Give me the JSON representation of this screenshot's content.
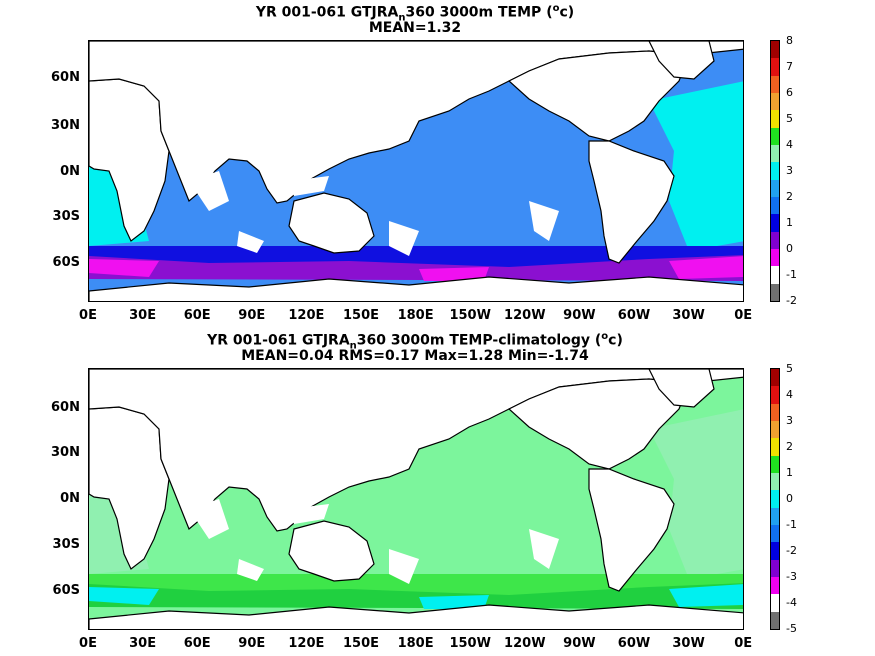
{
  "panels": [
    {
      "title_pre": "YR 001-061 GTJRA",
      "title_sub": "n",
      "title_post": "360 3000m TEMP (",
      "title_sup": "o",
      "title_end": "c)",
      "stats": "MEAN=1.32",
      "colorbar": {
        "labels": [
          "8",
          "7",
          "6",
          "5",
          "4",
          "3",
          "2",
          "1",
          "0",
          "-1",
          "-2"
        ],
        "colors": [
          "#a00000",
          "#e01010",
          "#f06020",
          "#f0a030",
          "#f0e000",
          "#20e020",
          "#90f0b0",
          "#00f0f0",
          "#20a0f0",
          "#1070f0",
          "#0000e0",
          "#8000d0",
          "#f000f0",
          "#ffffff",
          "#707070"
        ]
      },
      "region_colors": {
        "ocean_main": "#3d8df5",
        "atlantic": "#00f0f0",
        "southern_band": "#1010e0",
        "deep_south": "#8b10d0",
        "magenta": "#f010f0"
      }
    },
    {
      "title_pre": "YR 001-061 GTJRA",
      "title_sub": "n",
      "title_post": "360 3000m TEMP-climatology (",
      "title_sup": "o",
      "title_end": "c)",
      "stats": "MEAN=0.04   RMS=0.17   Max=1.28   Min=-1.74",
      "colorbar": {
        "labels": [
          "5",
          "4",
          "3",
          "2",
          "1",
          "0",
          "-1",
          "-2",
          "-3",
          "-4",
          "-5"
        ],
        "colors": [
          "#a00000",
          "#e01010",
          "#f06020",
          "#f0a030",
          "#f0e000",
          "#20e020",
          "#90f0b0",
          "#00f0f0",
          "#20a0f0",
          "#1070f0",
          "#0000e0",
          "#8000d0",
          "#f000f0",
          "#ffffff",
          "#707070"
        ]
      },
      "region_colors": {
        "ocean_main": "#7cf59c",
        "atlantic": "#90f0b0",
        "southern_band": "#3ee64a",
        "deep_south": "#20d040",
        "magenta": "#00f0f0"
      }
    }
  ],
  "axes": {
    "y_ticks": [
      "60N",
      "30N",
      "0N",
      "30S",
      "60S"
    ],
    "x_ticks": [
      "0E",
      "30E",
      "60E",
      "90E",
      "120E",
      "150E",
      "180E",
      "150W",
      "120W",
      "90W",
      "60W",
      "30W",
      "0E"
    ]
  }
}
